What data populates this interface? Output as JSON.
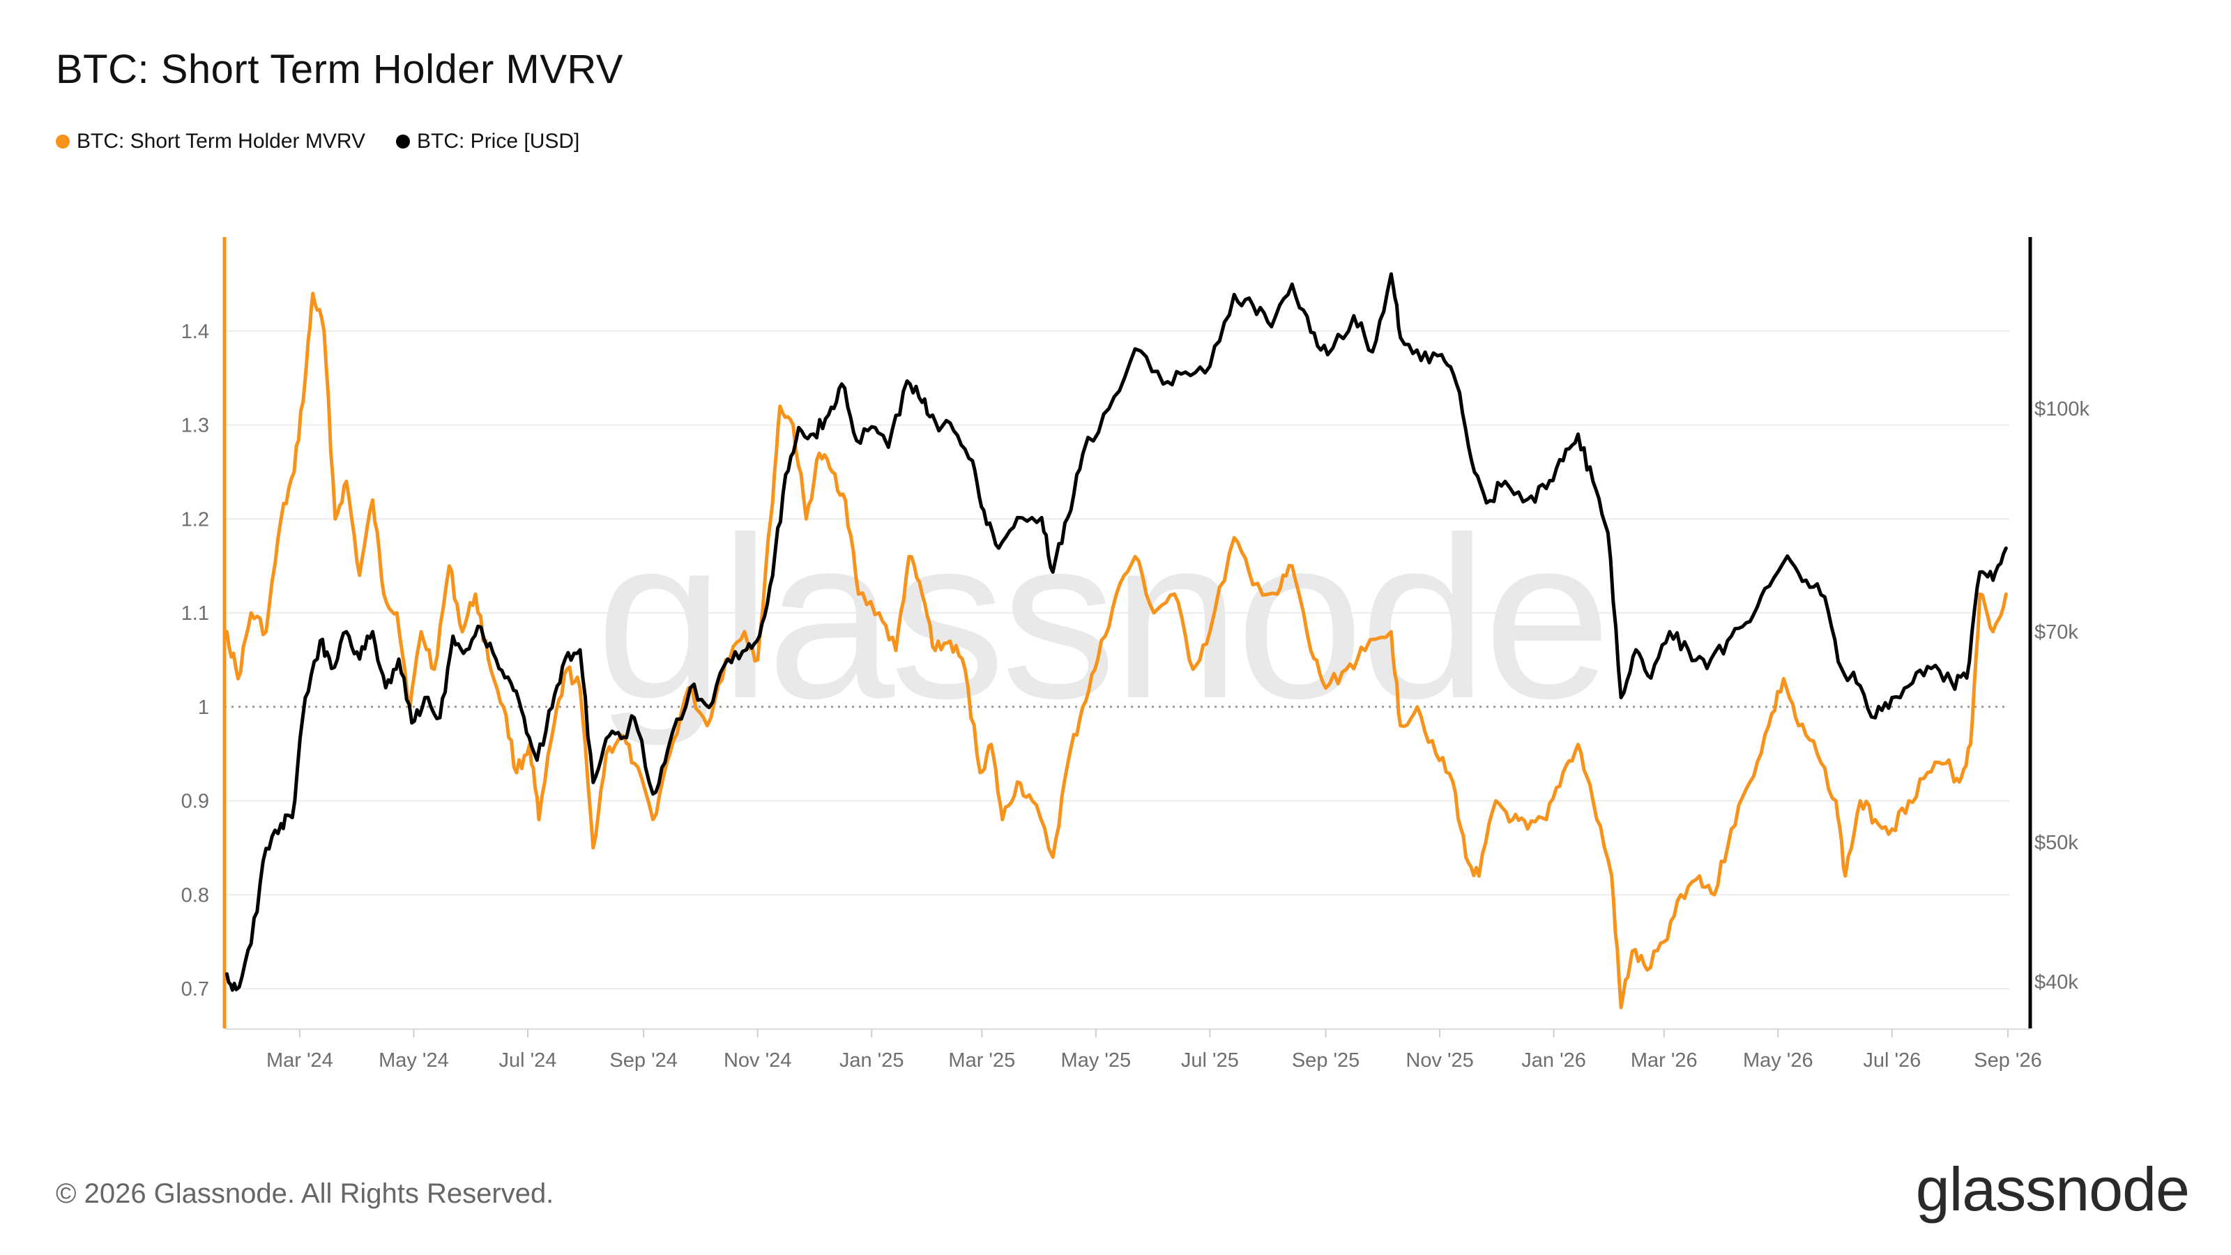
{
  "header": {
    "title": "BTC: Short Term Holder MVRV"
  },
  "legend": [
    {
      "label": "BTC: Short Term Holder MVRV",
      "color": "#f7931a"
    },
    {
      "label": "BTC: Price [USD]",
      "color": "#000000"
    }
  ],
  "footer": {
    "copyright": "© 2026 Glassnode. All Rights Reserved.",
    "logo_text": "glassnode"
  },
  "watermark": "glassnode",
  "chart_data": {
    "type": "line",
    "title": "BTC: Short Term Holder MVRV",
    "x_ticks": [
      "Mar '24",
      "May '24",
      "Jul '24",
      "Sep '24",
      "Nov '24",
      "Jan '25",
      "Mar '25",
      "May '25",
      "Jul '25",
      "Sep '25",
      "Nov '25",
      "Jan '26",
      "Mar '26",
      "May '26",
      "Jul '26",
      "Sep '26"
    ],
    "x_range": [
      "2024-01-20",
      "2026-09-01"
    ],
    "left_axis": {
      "ticks": [
        "0.7",
        "0.8",
        "0.9",
        "1",
        "1.1",
        "1.2",
        "1.3",
        "1.4"
      ],
      "range": [
        0.66,
        1.5
      ]
    },
    "right_axis": {
      "ticks": [
        "$40k",
        "$50k",
        "$70k",
        "$100k"
      ],
      "values": [
        40000,
        50000,
        70000,
        100000
      ],
      "scale": "log"
    },
    "reference_line": {
      "value": 1,
      "style": "dotted"
    },
    "grid": "horizontal",
    "legend_position": "top-left",
    "series": [
      {
        "name": "BTC: Short Term Holder MVRV",
        "color": "#f7931a",
        "axis": "left",
        "points": [
          [
            "2024-01-22",
            1.08
          ],
          [
            "2024-01-28",
            1.03
          ],
          [
            "2024-02-04",
            1.1
          ],
          [
            "2024-02-12",
            1.08
          ],
          [
            "2024-02-20",
            1.2
          ],
          [
            "2024-02-27",
            1.25
          ],
          [
            "2024-03-04",
            1.35
          ],
          [
            "2024-03-08",
            1.44
          ],
          [
            "2024-03-14",
            1.4
          ],
          [
            "2024-03-20",
            1.2
          ],
          [
            "2024-03-26",
            1.24
          ],
          [
            "2024-04-02",
            1.14
          ],
          [
            "2024-04-09",
            1.22
          ],
          [
            "2024-04-15",
            1.12
          ],
          [
            "2024-04-22",
            1.1
          ],
          [
            "2024-04-29",
            1.0
          ],
          [
            "2024-05-05",
            1.08
          ],
          [
            "2024-05-12",
            1.04
          ],
          [
            "2024-05-20",
            1.15
          ],
          [
            "2024-05-27",
            1.08
          ],
          [
            "2024-06-03",
            1.12
          ],
          [
            "2024-06-10",
            1.05
          ],
          [
            "2024-06-18",
            1.0
          ],
          [
            "2024-06-25",
            0.93
          ],
          [
            "2024-07-02",
            0.96
          ],
          [
            "2024-07-07",
            0.88
          ],
          [
            "2024-07-15",
            0.98
          ],
          [
            "2024-07-22",
            1.04
          ],
          [
            "2024-07-29",
            1.02
          ],
          [
            "2024-08-05",
            0.85
          ],
          [
            "2024-08-12",
            0.95
          ],
          [
            "2024-08-20",
            0.97
          ],
          [
            "2024-08-27",
            0.94
          ],
          [
            "2024-09-06",
            0.88
          ],
          [
            "2024-09-15",
            0.95
          ],
          [
            "2024-09-25",
            1.02
          ],
          [
            "2024-10-05",
            0.98
          ],
          [
            "2024-10-15",
            1.05
          ],
          [
            "2024-10-25",
            1.08
          ],
          [
            "2024-11-01",
            1.05
          ],
          [
            "2024-11-08",
            1.2
          ],
          [
            "2024-11-13",
            1.32
          ],
          [
            "2024-11-20",
            1.3
          ],
          [
            "2024-11-27",
            1.2
          ],
          [
            "2024-12-04",
            1.27
          ],
          [
            "2024-12-11",
            1.25
          ],
          [
            "2024-12-18",
            1.22
          ],
          [
            "2024-12-25",
            1.12
          ],
          [
            "2025-01-05",
            1.1
          ],
          [
            "2025-01-14",
            1.06
          ],
          [
            "2025-01-21",
            1.16
          ],
          [
            "2025-01-28",
            1.12
          ],
          [
            "2025-02-04",
            1.06
          ],
          [
            "2025-02-12",
            1.07
          ],
          [
            "2025-02-20",
            1.04
          ],
          [
            "2025-02-28",
            0.93
          ],
          [
            "2025-03-06",
            0.96
          ],
          [
            "2025-03-12",
            0.88
          ],
          [
            "2025-03-20",
            0.92
          ],
          [
            "2025-03-28",
            0.9
          ],
          [
            "2025-04-08",
            0.84
          ],
          [
            "2025-04-16",
            0.94
          ],
          [
            "2025-04-24",
            1.0
          ],
          [
            "2025-05-02",
            1.05
          ],
          [
            "2025-05-12",
            1.12
          ],
          [
            "2025-05-22",
            1.16
          ],
          [
            "2025-06-01",
            1.1
          ],
          [
            "2025-06-12",
            1.12
          ],
          [
            "2025-06-22",
            1.04
          ],
          [
            "2025-07-01",
            1.08
          ],
          [
            "2025-07-14",
            1.18
          ],
          [
            "2025-07-24",
            1.13
          ],
          [
            "2025-08-06",
            1.12
          ],
          [
            "2025-08-14",
            1.15
          ],
          [
            "2025-08-24",
            1.06
          ],
          [
            "2025-09-01",
            1.02
          ],
          [
            "2025-09-12",
            1.04
          ],
          [
            "2025-09-22",
            1.06
          ],
          [
            "2025-10-06",
            1.08
          ],
          [
            "2025-10-11",
            0.98
          ],
          [
            "2025-10-20",
            1.0
          ],
          [
            "2025-10-30",
            0.95
          ],
          [
            "2025-11-08",
            0.92
          ],
          [
            "2025-11-15",
            0.84
          ],
          [
            "2025-11-22",
            0.82
          ],
          [
            "2025-12-01",
            0.9
          ],
          [
            "2025-12-10",
            0.88
          ],
          [
            "2025-12-18",
            0.87
          ],
          [
            "2025-12-28",
            0.88
          ],
          [
            "2026-01-06",
            0.93
          ],
          [
            "2026-01-14",
            0.96
          ],
          [
            "2026-01-22",
            0.9
          ],
          [
            "2026-02-01",
            0.82
          ],
          [
            "2026-02-06",
            0.68
          ],
          [
            "2026-02-12",
            0.74
          ],
          [
            "2026-02-20",
            0.72
          ],
          [
            "2026-03-01",
            0.75
          ],
          [
            "2026-03-10",
            0.8
          ],
          [
            "2026-03-20",
            0.82
          ],
          [
            "2026-03-28",
            0.8
          ],
          [
            "2026-04-06",
            0.87
          ],
          [
            "2026-04-16",
            0.92
          ],
          [
            "2026-04-26",
            0.98
          ],
          [
            "2026-05-04",
            1.03
          ],
          [
            "2026-05-12",
            0.98
          ],
          [
            "2026-05-22",
            0.95
          ],
          [
            "2026-06-01",
            0.9
          ],
          [
            "2026-06-06",
            0.82
          ],
          [
            "2026-06-14",
            0.9
          ],
          [
            "2026-06-22",
            0.88
          ],
          [
            "2026-07-01",
            0.87
          ],
          [
            "2026-07-10",
            0.9
          ],
          [
            "2026-07-20",
            0.93
          ],
          [
            "2026-07-30",
            0.94
          ],
          [
            "2026-08-06",
            0.92
          ],
          [
            "2026-08-12",
            0.96
          ],
          [
            "2026-08-17",
            1.12
          ],
          [
            "2026-08-24",
            1.08
          ],
          [
            "2026-08-31",
            1.12
          ]
        ]
      },
      {
        "name": "BTC: Price [USD]",
        "color": "#000000",
        "axis": "right",
        "points": [
          [
            "2024-01-22",
            40500
          ],
          [
            "2024-01-27",
            39500
          ],
          [
            "2024-02-04",
            42500
          ],
          [
            "2024-02-12",
            49500
          ],
          [
            "2024-02-20",
            51500
          ],
          [
            "2024-02-26",
            52000
          ],
          [
            "2024-03-04",
            63000
          ],
          [
            "2024-03-12",
            69000
          ],
          [
            "2024-03-18",
            66000
          ],
          [
            "2024-03-26",
            70000
          ],
          [
            "2024-04-02",
            67000
          ],
          [
            "2024-04-09",
            70000
          ],
          [
            "2024-04-16",
            64000
          ],
          [
            "2024-04-23",
            67000
          ],
          [
            "2024-04-30",
            60500
          ],
          [
            "2024-05-07",
            63000
          ],
          [
            "2024-05-15",
            61000
          ],
          [
            "2024-05-22",
            69500
          ],
          [
            "2024-05-29",
            68000
          ],
          [
            "2024-06-06",
            70500
          ],
          [
            "2024-06-14",
            67000
          ],
          [
            "2024-06-22",
            64500
          ],
          [
            "2024-06-29",
            61000
          ],
          [
            "2024-07-06",
            57000
          ],
          [
            "2024-07-14",
            62000
          ],
          [
            "2024-07-21",
            67000
          ],
          [
            "2024-07-29",
            68000
          ],
          [
            "2024-08-05",
            55000
          ],
          [
            "2024-08-12",
            59000
          ],
          [
            "2024-08-20",
            59000
          ],
          [
            "2024-08-27",
            61000
          ],
          [
            "2024-09-06",
            54000
          ],
          [
            "2024-09-14",
            58000
          ],
          [
            "2024-09-26",
            64000
          ],
          [
            "2024-10-06",
            62000
          ],
          [
            "2024-10-16",
            67000
          ],
          [
            "2024-10-26",
            68000
          ],
          [
            "2024-11-02",
            69500
          ],
          [
            "2024-11-09",
            76500
          ],
          [
            "2024-11-16",
            90000
          ],
          [
            "2024-11-23",
            97000
          ],
          [
            "2024-12-01",
            96000
          ],
          [
            "2024-12-09",
            99000
          ],
          [
            "2024-12-16",
            104000
          ],
          [
            "2024-12-24",
            95000
          ],
          [
            "2025-01-03",
            97000
          ],
          [
            "2025-01-10",
            94000
          ],
          [
            "2025-01-20",
            104500
          ],
          [
            "2025-01-28",
            101000
          ],
          [
            "2025-02-04",
            98000
          ],
          [
            "2025-02-14",
            96500
          ],
          [
            "2025-02-24",
            92000
          ],
          [
            "2025-03-02",
            85000
          ],
          [
            "2025-03-10",
            80000
          ],
          [
            "2025-03-20",
            84000
          ],
          [
            "2025-04-02",
            84000
          ],
          [
            "2025-04-08",
            77000
          ],
          [
            "2025-04-16",
            84000
          ],
          [
            "2025-04-24",
            93000
          ],
          [
            "2025-05-08",
            100000
          ],
          [
            "2025-05-22",
            110000
          ],
          [
            "2025-06-06",
            104000
          ],
          [
            "2025-06-18",
            106000
          ],
          [
            "2025-07-01",
            107000
          ],
          [
            "2025-07-14",
            120000
          ],
          [
            "2025-07-24",
            118000
          ],
          [
            "2025-08-03",
            114000
          ],
          [
            "2025-08-14",
            122000
          ],
          [
            "2025-08-24",
            113000
          ],
          [
            "2025-09-02",
            109000
          ],
          [
            "2025-09-16",
            116000
          ],
          [
            "2025-09-26",
            109500
          ],
          [
            "2025-10-06",
            124000
          ],
          [
            "2025-10-11",
            112000
          ],
          [
            "2025-10-22",
            108000
          ],
          [
            "2025-11-02",
            109000
          ],
          [
            "2025-11-10",
            104000
          ],
          [
            "2025-11-18",
            92000
          ],
          [
            "2025-11-26",
            86000
          ],
          [
            "2025-12-06",
            89000
          ],
          [
            "2025-12-18",
            86500
          ],
          [
            "2025-12-28",
            88000
          ],
          [
            "2026-01-06",
            92000
          ],
          [
            "2026-01-14",
            96000
          ],
          [
            "2026-01-22",
            89000
          ],
          [
            "2026-01-30",
            82000
          ],
          [
            "2026-02-06",
            63000
          ],
          [
            "2026-02-14",
            68000
          ],
          [
            "2026-02-22",
            65000
          ],
          [
            "2026-03-04",
            70000
          ],
          [
            "2026-03-14",
            68000
          ],
          [
            "2026-03-24",
            66000
          ],
          [
            "2026-04-04",
            69000
          ],
          [
            "2026-04-14",
            71000
          ],
          [
            "2026-04-24",
            75000
          ],
          [
            "2026-05-06",
            79000
          ],
          [
            "2026-05-16",
            76000
          ],
          [
            "2026-05-26",
            74000
          ],
          [
            "2026-06-04",
            66000
          ],
          [
            "2026-06-12",
            64500
          ],
          [
            "2026-06-22",
            61000
          ],
          [
            "2026-07-01",
            63000
          ],
          [
            "2026-07-12",
            64500
          ],
          [
            "2026-07-22",
            66000
          ],
          [
            "2026-08-02",
            64500
          ],
          [
            "2026-08-10",
            65000
          ],
          [
            "2026-08-17",
            77000
          ],
          [
            "2026-08-24",
            76000
          ],
          [
            "2026-08-31",
            80000
          ]
        ]
      }
    ]
  }
}
